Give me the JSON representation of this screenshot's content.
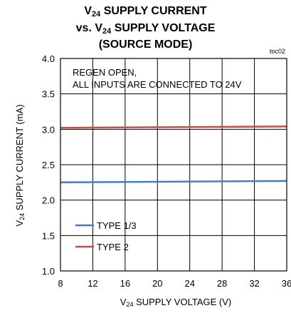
{
  "chart_data": {
    "type": "line",
    "title": {
      "line1_prefix": "V",
      "line1_sub": "24",
      "line1_rest": " SUPPLY CURRENT",
      "line2_prefix": "vs. V",
      "line2_sub": "24",
      "line2_rest": " SUPPLY VOLTAGE",
      "line3": "(SOURCE MODE)"
    },
    "tag": "toc02",
    "annotation": [
      "REGEN OPEN,",
      "ALL INPUTS ARE CONNECTED TO 24V"
    ],
    "xlabel": {
      "prefix": "V",
      "sub": "24",
      "rest": " SUPPLY VOLTAGE (V)"
    },
    "ylabel": {
      "prefix": "V",
      "sub": "24",
      "rest": " SUPPLY CURRENT (mA)"
    },
    "xlim": [
      8,
      36
    ],
    "ylim": [
      1.0,
      4.0
    ],
    "xticks": [
      "8",
      "12",
      "16",
      "20",
      "24",
      "28",
      "32",
      "36"
    ],
    "yticks": [
      "1.0",
      "1.5",
      "2.0",
      "2.5",
      "3.0",
      "3.5",
      "4.0"
    ],
    "grid": true,
    "legend_position": "bottom-left",
    "series": [
      {
        "name": "TYPE 1/3",
        "color": "#4a7bbd",
        "x": [
          8,
          36
        ],
        "y": [
          2.25,
          2.27
        ]
      },
      {
        "name": "TYPE 2",
        "color": "#c0504d",
        "x": [
          8,
          36
        ],
        "y": [
          3.02,
          3.04
        ]
      }
    ]
  }
}
